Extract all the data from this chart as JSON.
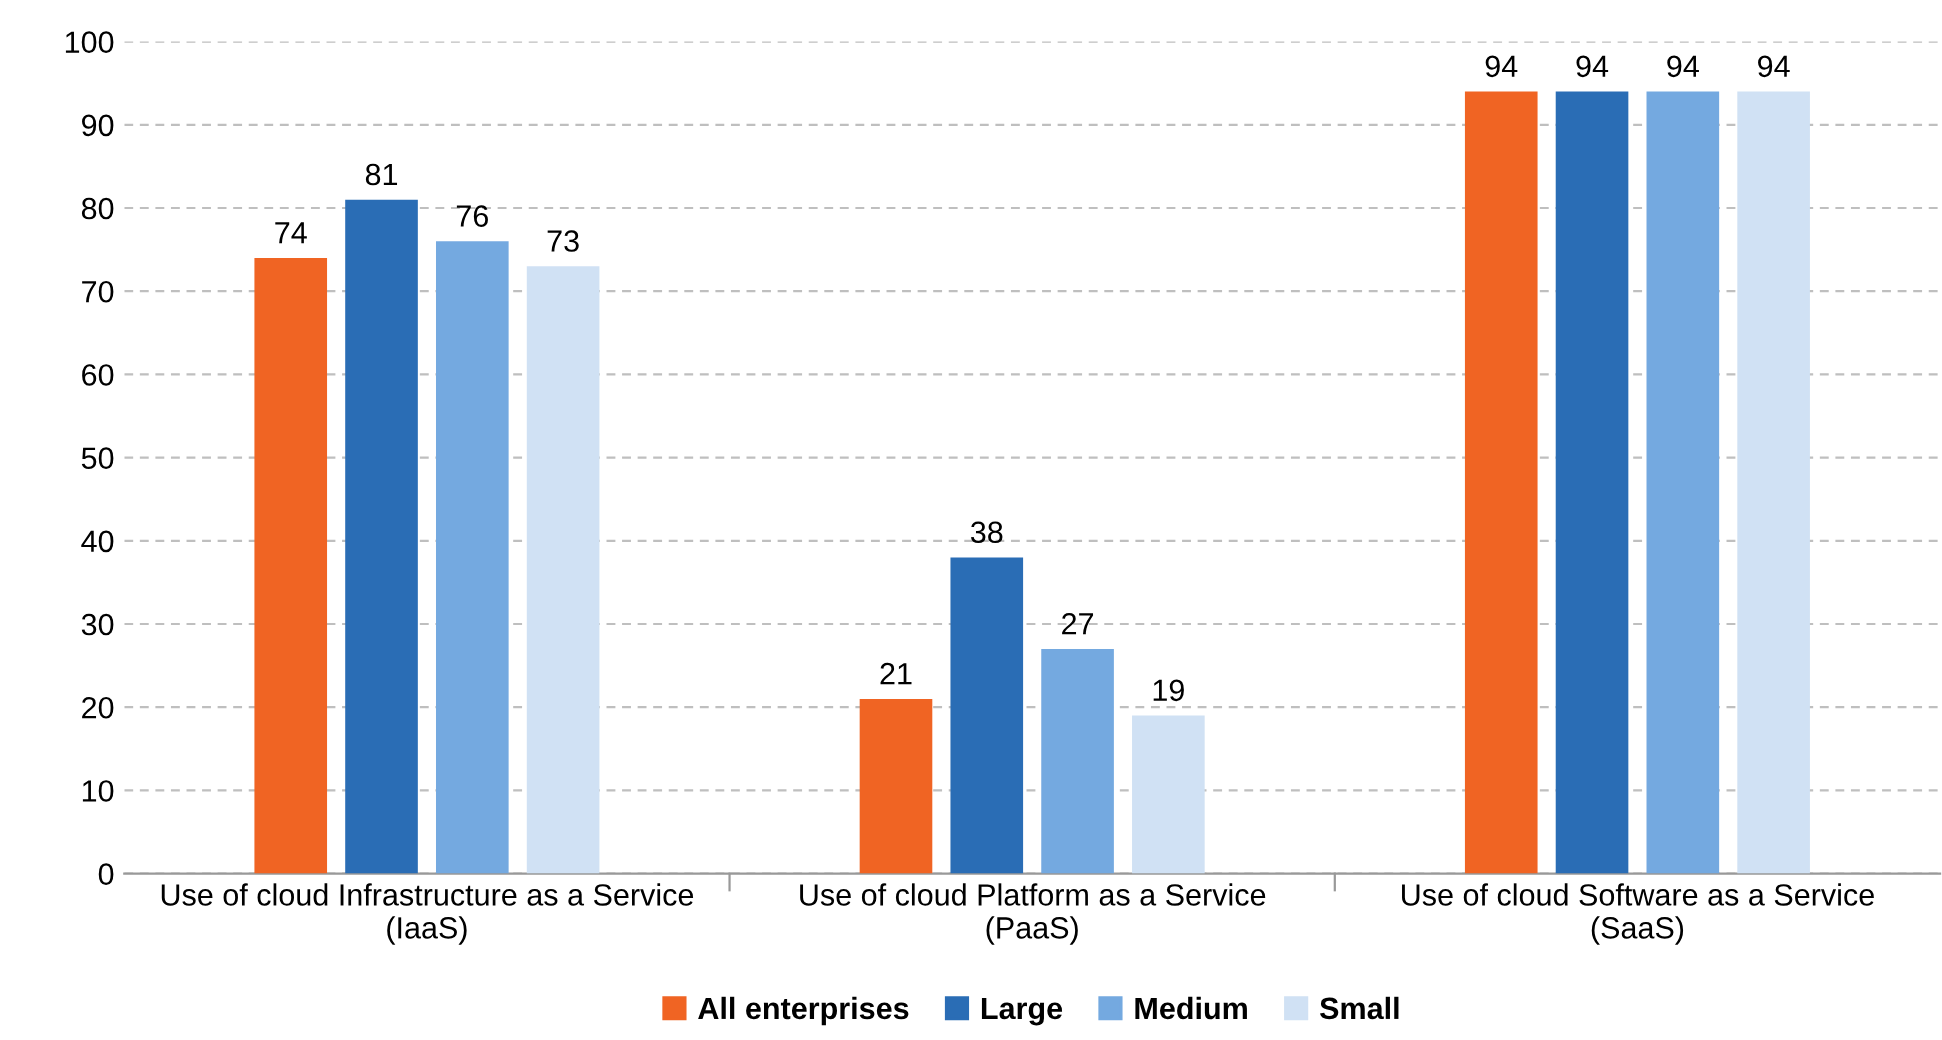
{
  "chart_data": {
    "type": "bar",
    "categories": [
      "Use of cloud Infrastructure as a Service\n(IaaS)",
      "Use of cloud Platform as a Service\n(PaaS)",
      "Use of cloud Software as a Service\n(SaaS)"
    ],
    "series": [
      {
        "name": "All enterprises",
        "color": "#f06423",
        "values": [
          74,
          21,
          94
        ]
      },
      {
        "name": "Large",
        "color": "#2a6db5",
        "values": [
          81,
          38,
          94
        ]
      },
      {
        "name": "Medium",
        "color": "#74a9e0",
        "values": [
          76,
          27,
          94
        ]
      },
      {
        "name": "Small",
        "color": "#d0e1f4",
        "values": [
          73,
          19,
          94
        ]
      }
    ],
    "ylim": [
      0,
      100
    ],
    "yticks": [
      0,
      10,
      20,
      30,
      40,
      50,
      60,
      70,
      80,
      90,
      100
    ],
    "grid": "y",
    "legend": "bottom",
    "data_labels": true
  }
}
